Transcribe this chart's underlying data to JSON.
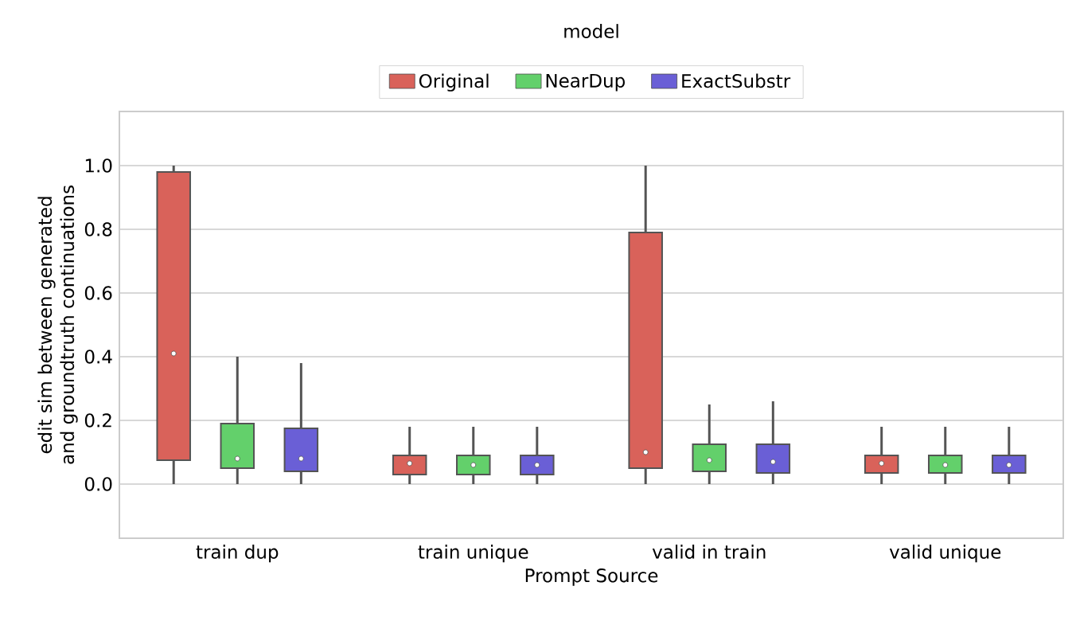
{
  "chart_data": {
    "type": "box",
    "xlabel": "Prompt Source",
    "ylabel": "edit sim between generated\nand groundtruth continuations",
    "legend_title": "model",
    "categories": [
      "train dup",
      "train unique",
      "valid in train",
      "valid unique"
    ],
    "series": [
      {
        "name": "Original",
        "color": "#d9625a",
        "boxes": [
          {
            "low": 0.0,
            "q1": 0.075,
            "median": 0.41,
            "q3": 0.98,
            "high": 1.0
          },
          {
            "low": 0.0,
            "q1": 0.03,
            "median": 0.065,
            "q3": 0.09,
            "high": 0.18
          },
          {
            "low": 0.0,
            "q1": 0.05,
            "median": 0.1,
            "q3": 0.79,
            "high": 1.0
          },
          {
            "low": 0.0,
            "q1": 0.035,
            "median": 0.065,
            "q3": 0.09,
            "high": 0.18
          }
        ]
      },
      {
        "name": "NearDup",
        "color": "#63d06b",
        "boxes": [
          {
            "low": 0.0,
            "q1": 0.05,
            "median": 0.08,
            "q3": 0.19,
            "high": 0.4
          },
          {
            "low": 0.0,
            "q1": 0.03,
            "median": 0.06,
            "q3": 0.09,
            "high": 0.18
          },
          {
            "low": 0.0,
            "q1": 0.04,
            "median": 0.075,
            "q3": 0.125,
            "high": 0.25
          },
          {
            "low": 0.0,
            "q1": 0.035,
            "median": 0.06,
            "q3": 0.09,
            "high": 0.18
          }
        ]
      },
      {
        "name": "ExactSubstr",
        "color": "#6a5fd6",
        "boxes": [
          {
            "low": 0.0,
            "q1": 0.04,
            "median": 0.08,
            "q3": 0.175,
            "high": 0.38
          },
          {
            "low": 0.0,
            "q1": 0.03,
            "median": 0.06,
            "q3": 0.09,
            "high": 0.18
          },
          {
            "low": 0.0,
            "q1": 0.035,
            "median": 0.07,
            "q3": 0.125,
            "high": 0.26
          },
          {
            "low": 0.0,
            "q1": 0.035,
            "median": 0.06,
            "q3": 0.09,
            "high": 0.18
          }
        ]
      }
    ],
    "ylim": [
      -0.17,
      1.17
    ],
    "yticks": [
      {
        "value": 0,
        "label": "0.0"
      },
      0.2,
      0.4,
      0.6,
      0.8,
      {
        "value": 1,
        "label": "1.0"
      }
    ],
    "grid": "y",
    "legend": "top"
  }
}
